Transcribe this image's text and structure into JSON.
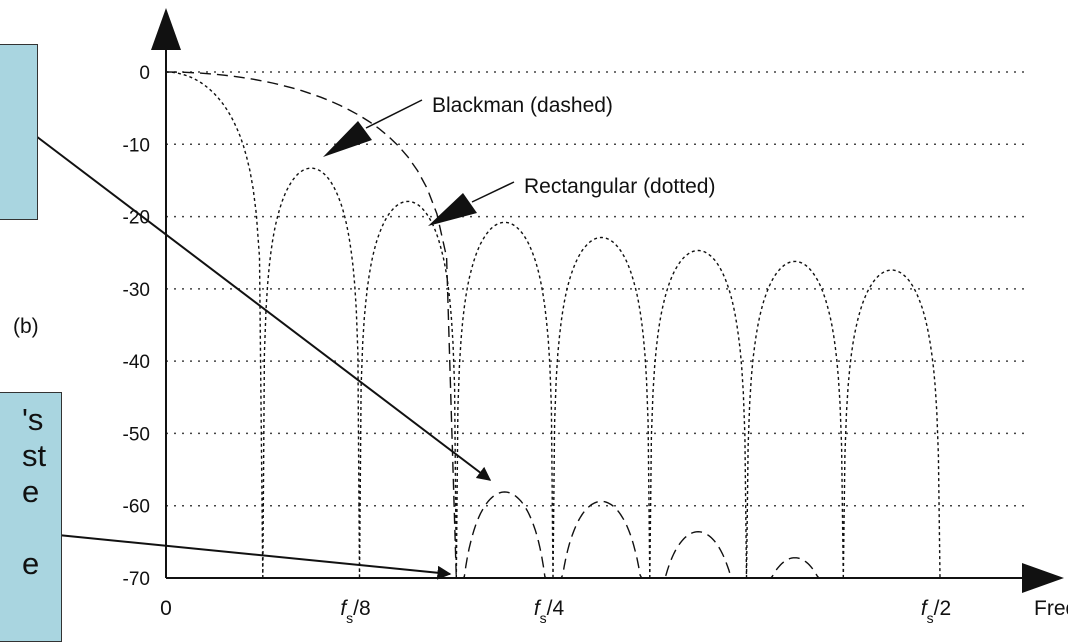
{
  "chart_data": {
    "type": "line",
    "xlabel": "Freq",
    "ylabel": "",
    "ylim": [
      -70,
      0
    ],
    "xlim": [
      0,
      0.5
    ],
    "y_ticks": [
      "0",
      "-10",
      "-20",
      "-30",
      "-40",
      "-50",
      "-60",
      "-70"
    ],
    "x_ticks": [
      {
        "pos": 0,
        "main": "0",
        "sub": ""
      },
      {
        "pos": 0.125,
        "main": "f",
        "sub": "s",
        "suffix": "/8"
      },
      {
        "pos": 0.25,
        "main": "f",
        "sub": "s",
        "suffix": "/4"
      },
      {
        "pos": 0.5,
        "main": "f",
        "sub": "s",
        "suffix": "/2"
      }
    ],
    "grid": true,
    "series": [
      {
        "name": "Rectangular (dotted)",
        "style": "dotted",
        "lobes": [
          {
            "x0": -0.0625,
            "x1": 0.0625,
            "peak": 0
          },
          {
            "x0": 0.0625,
            "x1": 0.125,
            "peak": -13.3
          },
          {
            "x0": 0.125,
            "x1": 0.1875,
            "peak": -17.9
          },
          {
            "x0": 0.1875,
            "x1": 0.25,
            "peak": -20.8
          },
          {
            "x0": 0.25,
            "x1": 0.3125,
            "peak": -22.9
          },
          {
            "x0": 0.3125,
            "x1": 0.375,
            "peak": -24.7
          },
          {
            "x0": 0.375,
            "x1": 0.4375,
            "peak": -26.2
          },
          {
            "x0": 0.4375,
            "x1": 0.5,
            "peak": -27.4
          }
        ]
      },
      {
        "name": "Blackman (dashed)",
        "style": "dashed",
        "lobes": [
          {
            "x0": -0.1875,
            "x1": 0.1875,
            "peak": 0
          },
          {
            "x0": 0.1875,
            "x1": 0.25,
            "peak": -58.1
          },
          {
            "x0": 0.25,
            "x1": 0.3125,
            "peak": -59.4
          },
          {
            "x0": 0.3125,
            "x1": 0.375,
            "peak": -63.6
          },
          {
            "x0": 0.375,
            "x1": 0.4375,
            "peak": -67.2
          }
        ]
      }
    ],
    "annotations": [
      {
        "text": "Blackman (dashed)"
      },
      {
        "text": "Rectangular (dotted)"
      },
      {
        "text": "(b)"
      }
    ]
  },
  "callouts": [
    {
      "text": ""
    },
    {
      "text": "'s\nst\ne\n\ne"
    }
  ]
}
